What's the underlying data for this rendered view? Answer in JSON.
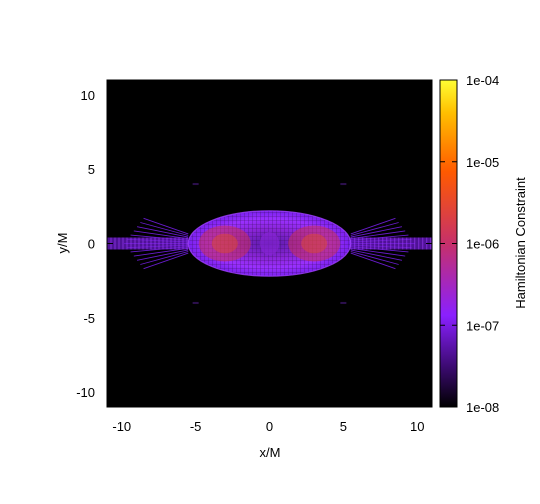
{
  "chart_data": {
    "type": "heatmap",
    "title": "",
    "xlabel": "x/M",
    "ylabel": "y/M",
    "xlim": [
      -11,
      11
    ],
    "ylim": [
      -11,
      11
    ],
    "xticks": [
      -10,
      -5,
      0,
      5,
      10
    ],
    "yticks": [
      -10,
      -5,
      0,
      5,
      10
    ],
    "colorbar": {
      "label": "Hamiltonian Constraint",
      "scale": "log",
      "range": [
        1e-08,
        0.0001
      ],
      "ticks": [
        "1e-08",
        "1e-07",
        "1e-06",
        "1e-05",
        "1e-04"
      ],
      "colors": [
        "#000000",
        "#3a0a6e",
        "#8a20ff",
        "#c6306a",
        "#ff5a00",
        "#ffbf00",
        "#ffff33"
      ]
    },
    "features": [
      {
        "shape": "ellipse",
        "center": [
          0,
          0
        ],
        "semi_axes": [
          5.5,
          2.2
        ],
        "peak_value": 1e-06
      },
      {
        "shape": "jet",
        "from_x": -5.5,
        "to_x": -11,
        "y": 0,
        "value": 1e-07
      },
      {
        "shape": "jet",
        "from_x": 5.5,
        "to_x": 11,
        "y": 0,
        "value": 1e-07
      }
    ]
  }
}
